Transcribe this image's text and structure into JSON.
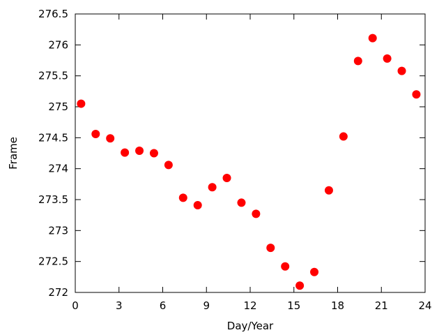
{
  "chart_data": {
    "type": "scatter",
    "xlabel": "Day/Year",
    "ylabel": "Frame",
    "xlim": [
      0,
      24
    ],
    "ylim": [
      272,
      276.5
    ],
    "xticks": [
      0,
      3,
      6,
      9,
      12,
      15,
      18,
      21,
      24
    ],
    "yticks": [
      272,
      272.5,
      273,
      273.5,
      274,
      274.5,
      275,
      275.5,
      276,
      276.5
    ],
    "grid": false,
    "legend": "none",
    "marker_color": "#ff0000",
    "series": [
      {
        "points": [
          {
            "x": 0.4,
            "y": 275.05
          },
          {
            "x": 1.4,
            "y": 274.56
          },
          {
            "x": 2.4,
            "y": 274.49
          },
          {
            "x": 3.4,
            "y": 274.26
          },
          {
            "x": 4.4,
            "y": 274.29
          },
          {
            "x": 5.4,
            "y": 274.25
          },
          {
            "x": 6.4,
            "y": 274.06
          },
          {
            "x": 7.4,
            "y": 273.53
          },
          {
            "x": 8.4,
            "y": 273.41
          },
          {
            "x": 9.4,
            "y": 273.7
          },
          {
            "x": 10.4,
            "y": 273.85
          },
          {
            "x": 11.4,
            "y": 273.45
          },
          {
            "x": 12.4,
            "y": 273.27
          },
          {
            "x": 13.4,
            "y": 272.72
          },
          {
            "x": 14.4,
            "y": 272.42
          },
          {
            "x": 15.4,
            "y": 272.11
          },
          {
            "x": 16.4,
            "y": 272.33
          },
          {
            "x": 17.4,
            "y": 273.65
          },
          {
            "x": 18.4,
            "y": 274.52
          },
          {
            "x": 19.4,
            "y": 275.74
          },
          {
            "x": 20.4,
            "y": 276.11
          },
          {
            "x": 21.4,
            "y": 275.78
          },
          {
            "x": 22.4,
            "y": 275.58
          },
          {
            "x": 23.4,
            "y": 275.2
          }
        ]
      }
    ]
  }
}
